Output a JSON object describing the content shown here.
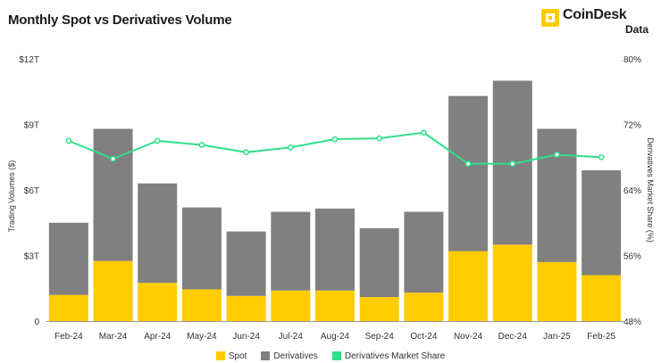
{
  "title": "Monthly Spot vs Derivatives Volume",
  "logo": {
    "name": "CoinDesk",
    "sub": "Data"
  },
  "colors": {
    "spot": "#ffcc00",
    "derivatives": "#808080",
    "share": "#2ee08a"
  },
  "chart_data": {
    "type": "bar",
    "stacked": true,
    "categories": [
      "Feb-24",
      "Mar-24",
      "Apr-24",
      "May-24",
      "Jun-24",
      "Jul-24",
      "Aug-24",
      "Sep-24",
      "Oct-24",
      "Nov-24",
      "Dec-24",
      "Jan-25",
      "Feb-25"
    ],
    "series": [
      {
        "name": "Spot",
        "axis": "left",
        "values": [
          1.2,
          2.75,
          1.75,
          1.45,
          1.15,
          1.4,
          1.4,
          1.1,
          1.3,
          3.2,
          3.5,
          2.7,
          2.1
        ]
      },
      {
        "name": "Derivatives",
        "axis": "left",
        "values": [
          3.3,
          6.05,
          4.55,
          3.75,
          2.95,
          3.6,
          3.75,
          3.15,
          3.7,
          7.1,
          7.5,
          6.1,
          4.8
        ]
      },
      {
        "name": "Derivatives Market Share",
        "type": "line",
        "axis": "right",
        "values": [
          70.0,
          67.8,
          70.0,
          69.5,
          68.6,
          69.2,
          70.2,
          70.3,
          71.0,
          67.2,
          67.2,
          68.3,
          68.0
        ]
      }
    ],
    "ylabel": "Trading Volumes ($)",
    "ylabel_right": "Derivatives Market Share (%)",
    "ylim": [
      0,
      12
    ],
    "ylim_right": [
      48,
      80
    ],
    "yticks": [
      0,
      3,
      6,
      9,
      12
    ],
    "ytick_labels": [
      "0",
      "$3T",
      "$6T",
      "$9T",
      "$12T"
    ],
    "yticks_right": [
      48,
      56,
      64,
      72,
      80
    ],
    "ytick_labels_right": [
      "48%",
      "56%",
      "64%",
      "72%",
      "80%"
    ],
    "grid": false,
    "legend_position": "bottom"
  }
}
